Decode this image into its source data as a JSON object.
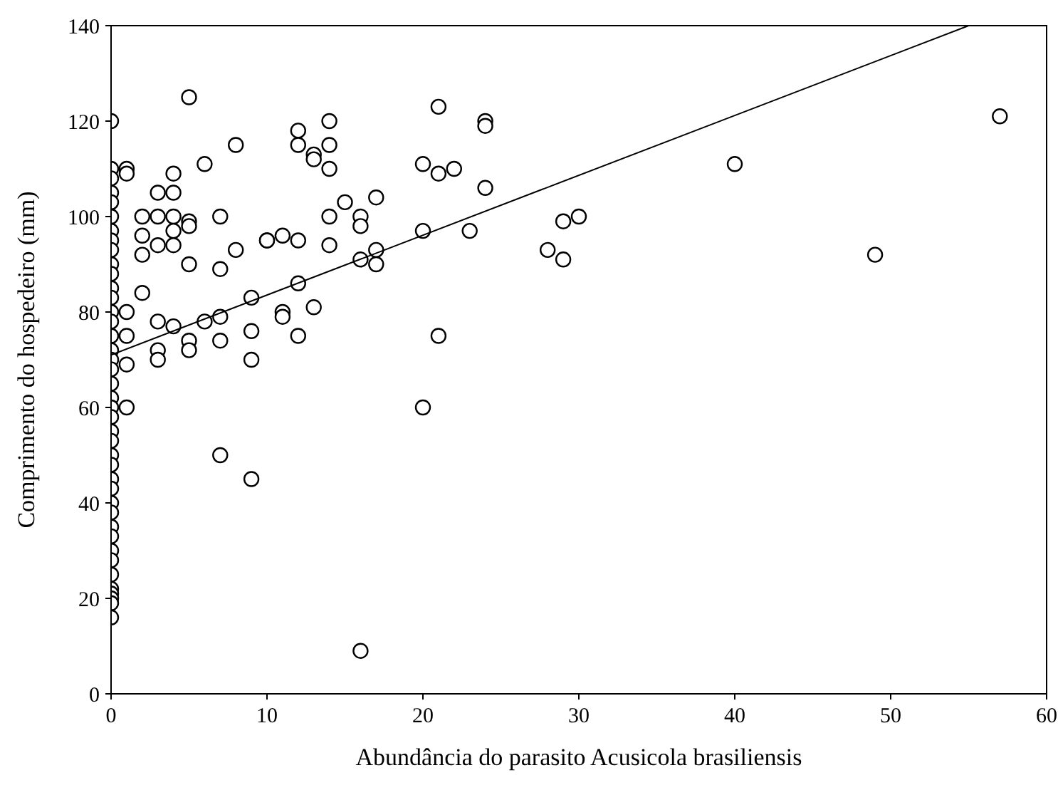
{
  "chart_data": {
    "type": "scatter",
    "xlabel": "Abundância do parasito Acusicola brasiliensis",
    "ylabel": "Comprimento do hospedeiro (mm)",
    "xlim": [
      0,
      60
    ],
    "ylim": [
      0,
      140
    ],
    "xticks": [
      0,
      10,
      20,
      30,
      40,
      50,
      60
    ],
    "yticks": [
      0,
      20,
      40,
      60,
      80,
      100,
      120,
      140
    ],
    "grid": false,
    "marker": "circle",
    "series": [
      {
        "color": "#000000",
        "x": [
          0,
          0,
          0,
          0,
          0,
          0,
          0,
          0,
          0,
          0,
          0,
          0,
          0,
          0,
          0,
          0,
          0,
          0,
          0,
          0,
          0,
          0,
          0,
          0,
          0,
          0,
          0,
          0,
          0,
          0,
          0,
          0,
          0,
          0,
          0,
          0,
          0,
          0,
          0,
          0,
          0,
          1,
          1,
          1,
          1,
          1,
          1,
          2,
          2,
          2,
          2,
          3,
          3,
          3,
          3,
          3,
          3,
          4,
          4,
          4,
          4,
          4,
          4,
          5,
          5,
          5,
          5,
          5,
          5,
          6,
          6,
          7,
          7,
          7,
          7,
          7,
          8,
          8,
          9,
          9,
          9,
          9,
          10,
          10,
          11,
          11,
          11,
          12,
          12,
          12,
          12,
          12,
          13,
          13,
          13,
          14,
          14,
          14,
          14,
          14,
          15,
          16,
          16,
          16,
          16,
          17,
          17,
          17,
          20,
          20,
          20,
          21,
          21,
          21,
          22,
          23,
          24,
          24,
          24,
          28,
          29,
          29,
          30,
          40,
          49,
          57
        ],
        "values": [
          120,
          110,
          108,
          105,
          103,
          100,
          97,
          95,
          93,
          90,
          88,
          85,
          83,
          80,
          78,
          75,
          72,
          70,
          68,
          65,
          62,
          60,
          58,
          55,
          53,
          50,
          48,
          45,
          43,
          40,
          38,
          35,
          33,
          30,
          28,
          25,
          22,
          21,
          20,
          19,
          16,
          110,
          109,
          80,
          75,
          69,
          60,
          100,
          96,
          92,
          84,
          105,
          100,
          94,
          78,
          72,
          70,
          109,
          105,
          100,
          97,
          94,
          77,
          125,
          99,
          98,
          90,
          74,
          72,
          111,
          78,
          100,
          89,
          79,
          74,
          50,
          115,
          93,
          83,
          76,
          70,
          45,
          95,
          95,
          96,
          80,
          79,
          118,
          115,
          95,
          86,
          75,
          113,
          112,
          81,
          120,
          115,
          110,
          100,
          94,
          103,
          100,
          98,
          91,
          9,
          104,
          93,
          90,
          111,
          97,
          60,
          123,
          109,
          75,
          110,
          97,
          120,
          119,
          106,
          93,
          99,
          91,
          100,
          111,
          92,
          121
        ]
      },
      {
        "type": "line",
        "color": "#000000",
        "marker": "none",
        "x": [
          0,
          55
        ],
        "values": [
          71,
          140
        ]
      }
    ]
  }
}
